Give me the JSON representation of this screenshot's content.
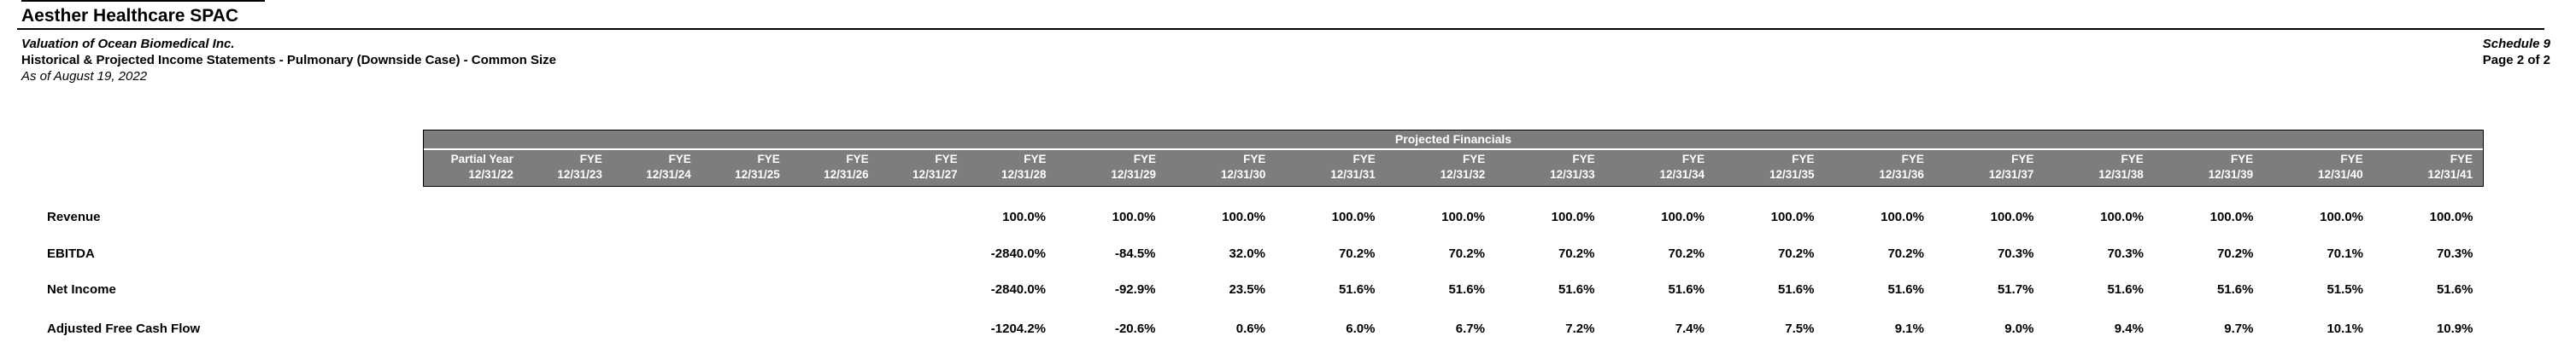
{
  "header": {
    "company": "Aesther Healthcare SPAC",
    "subtitle": "Valuation of Ocean Biomedical Inc.",
    "report_title": "Historical & Projected Income Statements - Pulmonary (Downside Case) - Common Size",
    "as_of": "As of August 19, 2022",
    "schedule": "Schedule 9",
    "page": "Page 2 of 2"
  },
  "colors": {
    "header_bg": "#7d7d7d",
    "header_text": "#ffffff"
  },
  "table": {
    "group_header": "Projected Financials",
    "columns": [
      {
        "period": "Partial Year",
        "date": "12/31/22"
      },
      {
        "period": "FYE",
        "date": "12/31/23"
      },
      {
        "period": "FYE",
        "date": "12/31/24"
      },
      {
        "period": "FYE",
        "date": "12/31/25"
      },
      {
        "period": "FYE",
        "date": "12/31/26"
      },
      {
        "period": "FYE",
        "date": "12/31/27"
      },
      {
        "period": "FYE",
        "date": "12/31/28"
      },
      {
        "period": "FYE",
        "date": "12/31/29"
      },
      {
        "period": "FYE",
        "date": "12/31/30"
      },
      {
        "period": "FYE",
        "date": "12/31/31"
      },
      {
        "period": "FYE",
        "date": "12/31/32"
      },
      {
        "period": "FYE",
        "date": "12/31/33"
      },
      {
        "period": "FYE",
        "date": "12/31/34"
      },
      {
        "period": "FYE",
        "date": "12/31/35"
      },
      {
        "period": "FYE",
        "date": "12/31/36"
      },
      {
        "period": "FYE",
        "date": "12/31/37"
      },
      {
        "period": "FYE",
        "date": "12/31/38"
      },
      {
        "period": "FYE",
        "date": "12/31/39"
      },
      {
        "period": "FYE",
        "date": "12/31/40"
      },
      {
        "period": "FYE",
        "date": "12/31/41"
      }
    ],
    "rows": [
      {
        "label": "Revenue",
        "values": [
          "",
          "",
          "",
          "",
          "",
          "",
          "100.0%",
          "100.0%",
          "100.0%",
          "100.0%",
          "100.0%",
          "100.0%",
          "100.0%",
          "100.0%",
          "100.0%",
          "100.0%",
          "100.0%",
          "100.0%",
          "100.0%",
          "100.0%"
        ]
      },
      {
        "label": "EBITDA",
        "values": [
          "",
          "",
          "",
          "",
          "",
          "",
          "-2840.0%",
          "-84.5%",
          "32.0%",
          "70.2%",
          "70.2%",
          "70.2%",
          "70.2%",
          "70.2%",
          "70.2%",
          "70.3%",
          "70.3%",
          "70.2%",
          "70.1%",
          "70.3%"
        ]
      },
      {
        "label": "Net Income",
        "values": [
          "",
          "",
          "",
          "",
          "",
          "",
          "-2840.0%",
          "-92.9%",
          "23.5%",
          "51.6%",
          "51.6%",
          "51.6%",
          "51.6%",
          "51.6%",
          "51.6%",
          "51.7%",
          "51.6%",
          "51.6%",
          "51.5%",
          "51.6%"
        ]
      },
      {
        "label": "Adjusted Free Cash Flow",
        "values": [
          "",
          "",
          "",
          "",
          "",
          "",
          "-1204.2%",
          "-20.6%",
          "0.6%",
          "6.0%",
          "6.7%",
          "7.2%",
          "7.4%",
          "7.5%",
          "9.1%",
          "9.0%",
          "9.4%",
          "9.7%",
          "10.1%",
          "10.9%"
        ]
      }
    ]
  }
}
